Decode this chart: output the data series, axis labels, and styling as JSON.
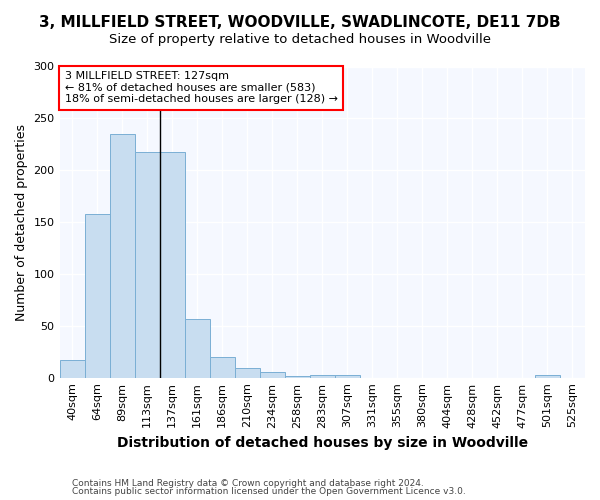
{
  "title": "3, MILLFIELD STREET, WOODVILLE, SWADLINCOTE, DE11 7DB",
  "subtitle": "Size of property relative to detached houses in Woodville",
  "xlabel": "Distribution of detached houses by size in Woodville",
  "ylabel": "Number of detached properties",
  "bar_color": "#c8ddf0",
  "bar_edge_color": "#7aafd4",
  "background_color": "#ffffff",
  "ax_background_color": "#f5f8ff",
  "categories": [
    "40sqm",
    "64sqm",
    "89sqm",
    "113sqm",
    "137sqm",
    "161sqm",
    "186sqm",
    "210sqm",
    "234sqm",
    "258sqm",
    "283sqm",
    "307sqm",
    "331sqm",
    "355sqm",
    "380sqm",
    "404sqm",
    "428sqm",
    "452sqm",
    "477sqm",
    "501sqm",
    "525sqm"
  ],
  "values": [
    17,
    158,
    235,
    218,
    218,
    57,
    20,
    9,
    5,
    2,
    3,
    3,
    0,
    0,
    0,
    0,
    0,
    0,
    0,
    3,
    0
  ],
  "ylim": [
    0,
    300
  ],
  "yticks": [
    0,
    50,
    100,
    150,
    200,
    250,
    300
  ],
  "annotation_line1": "3 MILLFIELD STREET: 127sqm",
  "annotation_line2": "← 81% of detached houses are smaller (583)",
  "annotation_line3": "18% of semi-detached houses are larger (128) →",
  "footer1": "Contains HM Land Registry data © Crown copyright and database right 2024.",
  "footer2": "Contains public sector information licensed under the Open Government Licence v3.0.",
  "grid_color": "#ffffff",
  "title_fontsize": 11,
  "subtitle_fontsize": 9.5,
  "ylabel_fontsize": 9,
  "xlabel_fontsize": 10,
  "tick_fontsize": 8,
  "annotation_box_color": "white",
  "annotation_border_color": "red",
  "vline_color": "black",
  "vline_x": 3.5
}
